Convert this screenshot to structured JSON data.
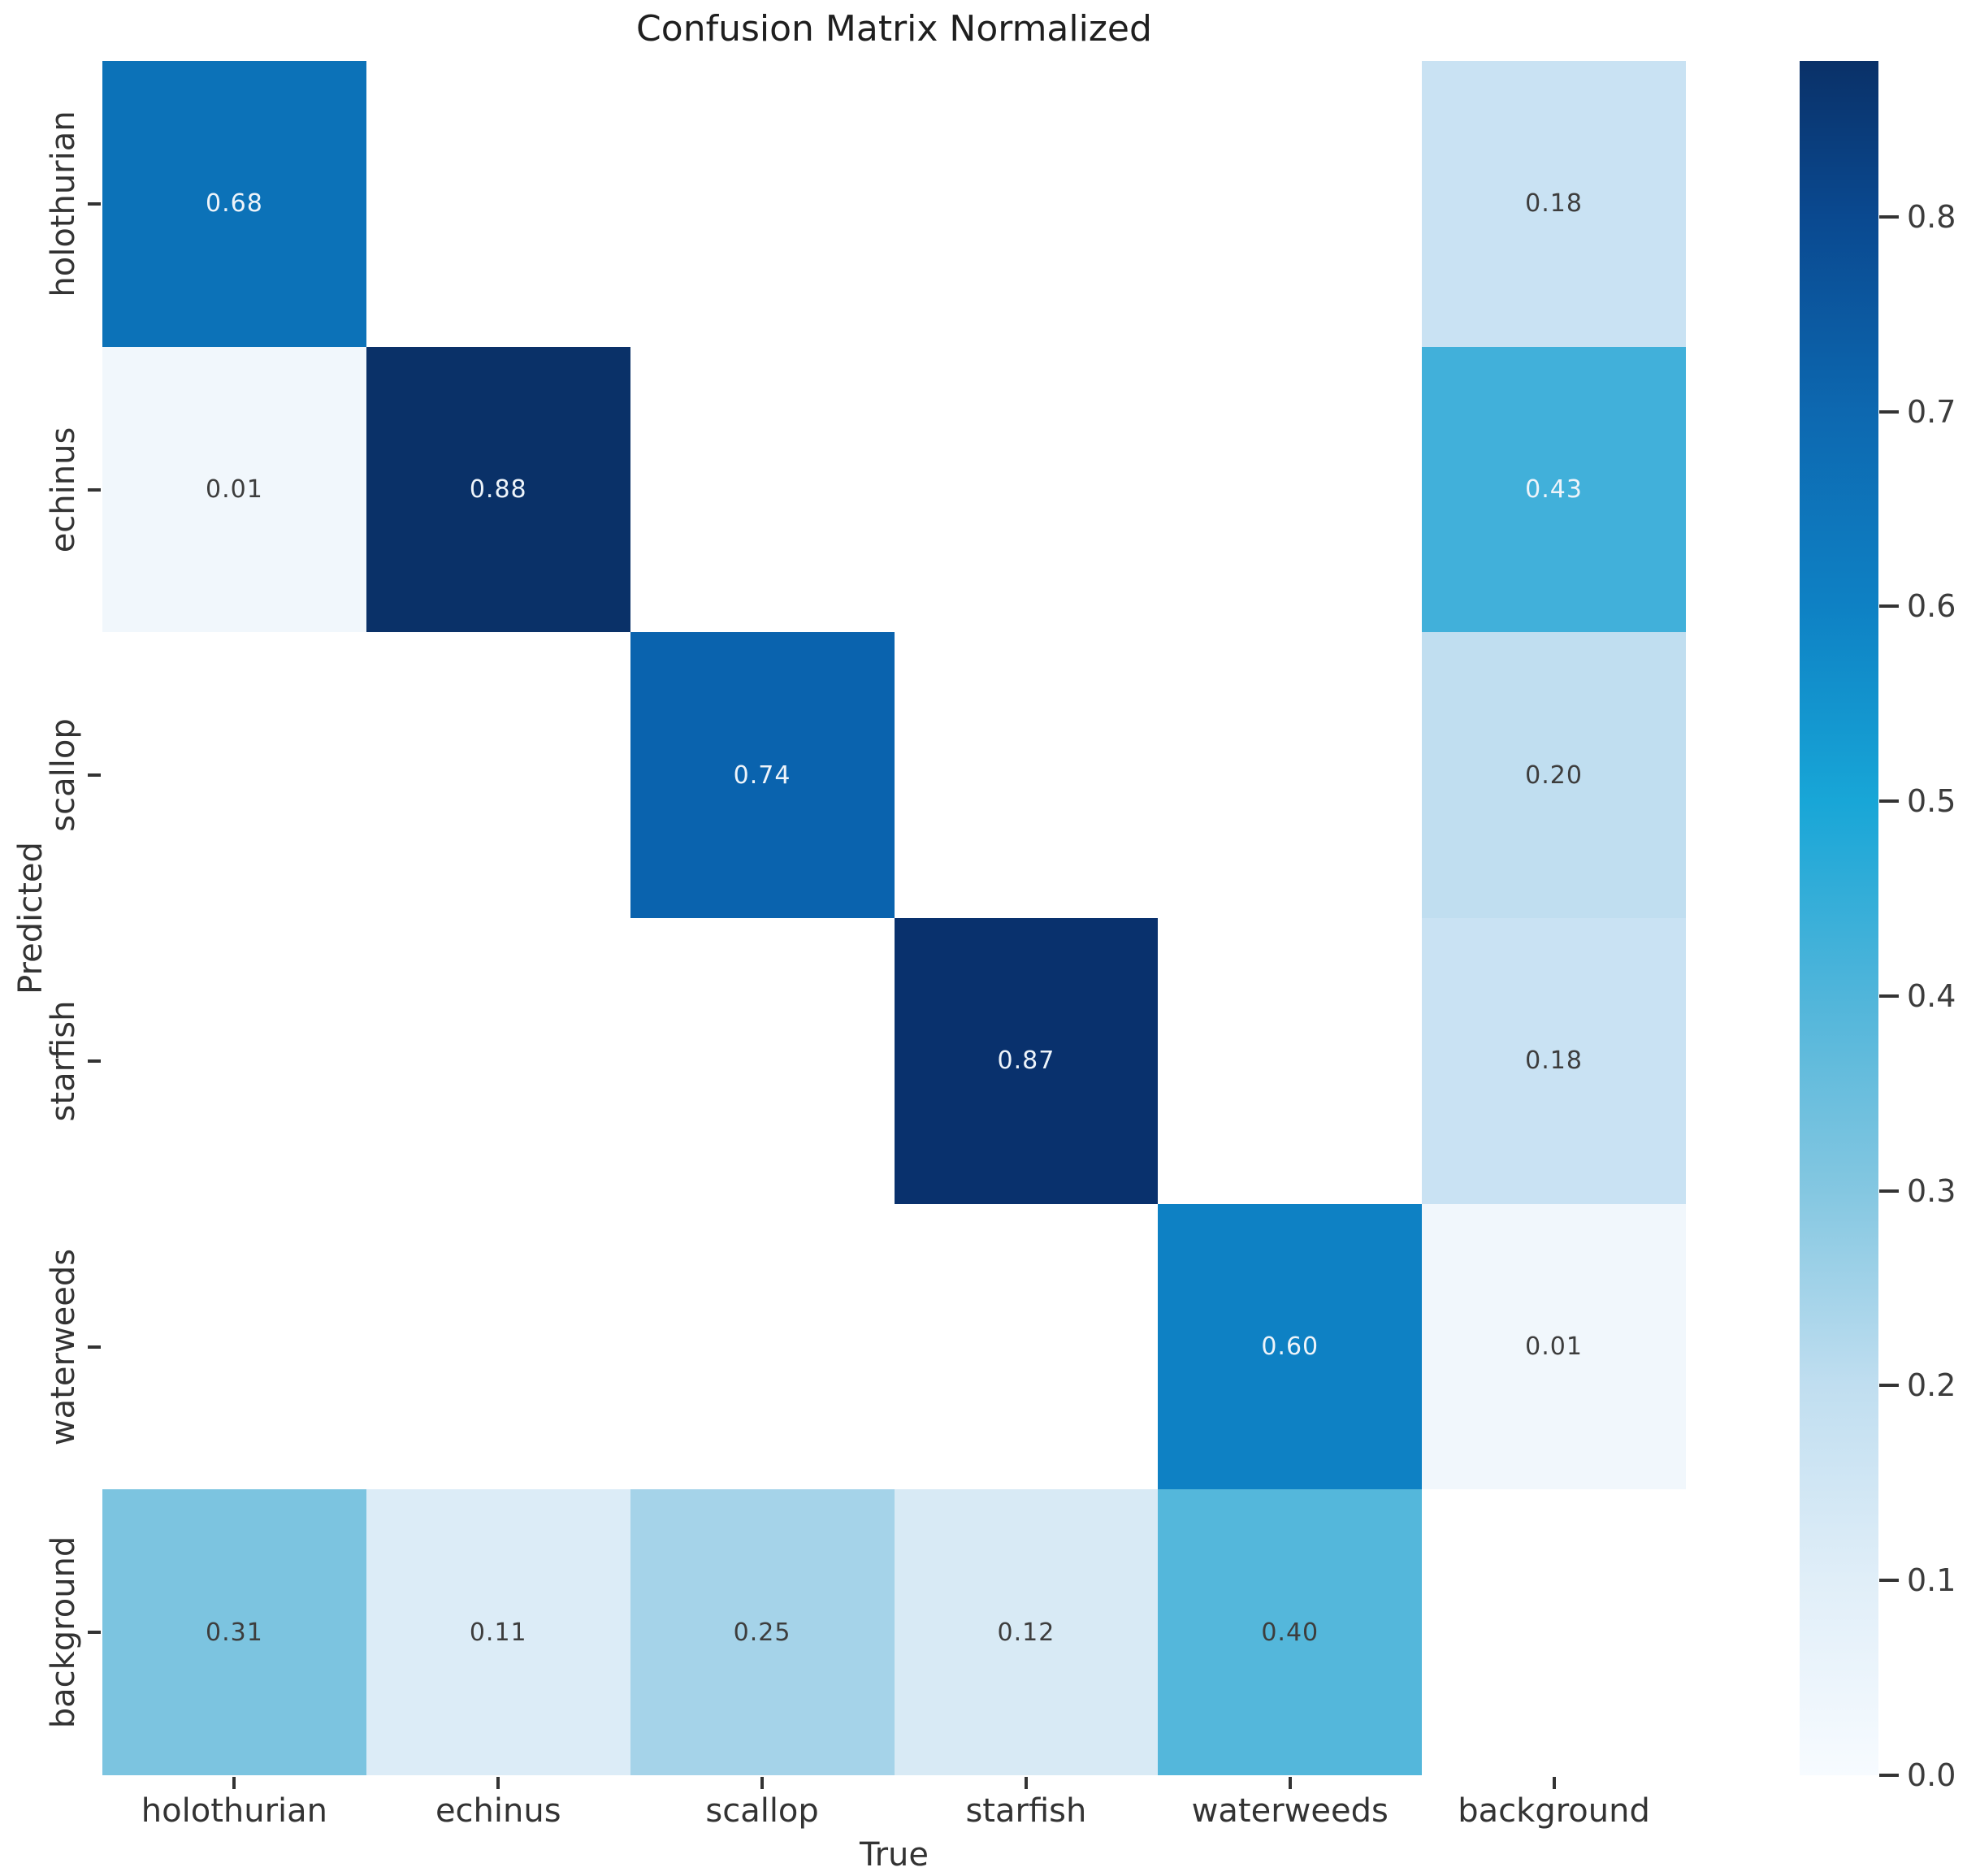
{
  "chart_data": {
    "type": "heatmap",
    "title": "Confusion Matrix Normalized",
    "xlabel": "True",
    "ylabel": "Predicted",
    "x_categories": [
      "holothurian",
      "echinus",
      "scallop",
      "starfish",
      "waterweeds",
      "background"
    ],
    "y_categories": [
      "holothurian",
      "echinus",
      "scallop",
      "starfish",
      "waterweeds",
      "background"
    ],
    "matrix": [
      [
        0.68,
        null,
        null,
        null,
        null,
        0.18
      ],
      [
        0.01,
        0.88,
        null,
        null,
        null,
        0.43
      ],
      [
        null,
        null,
        0.74,
        null,
        null,
        0.2
      ],
      [
        null,
        null,
        null,
        0.87,
        null,
        0.18
      ],
      [
        null,
        null,
        null,
        null,
        0.6,
        0.01
      ],
      [
        0.31,
        0.11,
        0.25,
        0.12,
        0.4,
        null
      ]
    ],
    "colorbar": {
      "min": 0.0,
      "max": 0.88,
      "ticks": [
        0.8,
        0.7,
        0.6,
        0.5,
        0.4,
        0.3,
        0.2,
        0.1,
        0.0
      ]
    },
    "colormap_stops": [
      {
        "value": 0.0,
        "color": "#f7fbff"
      },
      {
        "value": 0.1,
        "color": "#e0eef8"
      },
      {
        "value": 0.2,
        "color": "#c0def0"
      },
      {
        "value": 0.3,
        "color": "#84c7e1"
      },
      {
        "value": 0.4,
        "color": "#50b5da"
      },
      {
        "value": 0.5,
        "color": "#18a6d7"
      },
      {
        "value": 0.6,
        "color": "#0e81c4"
      },
      {
        "value": 0.7,
        "color": "#0d68b0"
      },
      {
        "value": 0.8,
        "color": "#0a4990"
      },
      {
        "value": 0.88,
        "color": "#0a3168"
      }
    ],
    "value_colors": {
      "0.01": "#f1f7fc",
      "0.11": "#dcecf7",
      "0.12": "#d8eaf5",
      "0.18": "#c9e2f3",
      "0.20": "#c0def0",
      "0.25": "#a5d3e9",
      "0.31": "#7cc4e0",
      "0.40": "#54b7db",
      "0.43": "#41b0da",
      "0.60": "#0e81c4",
      "0.68": "#0c72b8",
      "0.74": "#0a63ae",
      "0.87": "#09316d",
      "0.88": "#0a3168"
    },
    "empty_cell_color": "#ffffff",
    "annotation_colors": {
      "light": "#eef4fa",
      "dark": "#3d3d3d"
    },
    "light_text_threshold": 0.42
  }
}
